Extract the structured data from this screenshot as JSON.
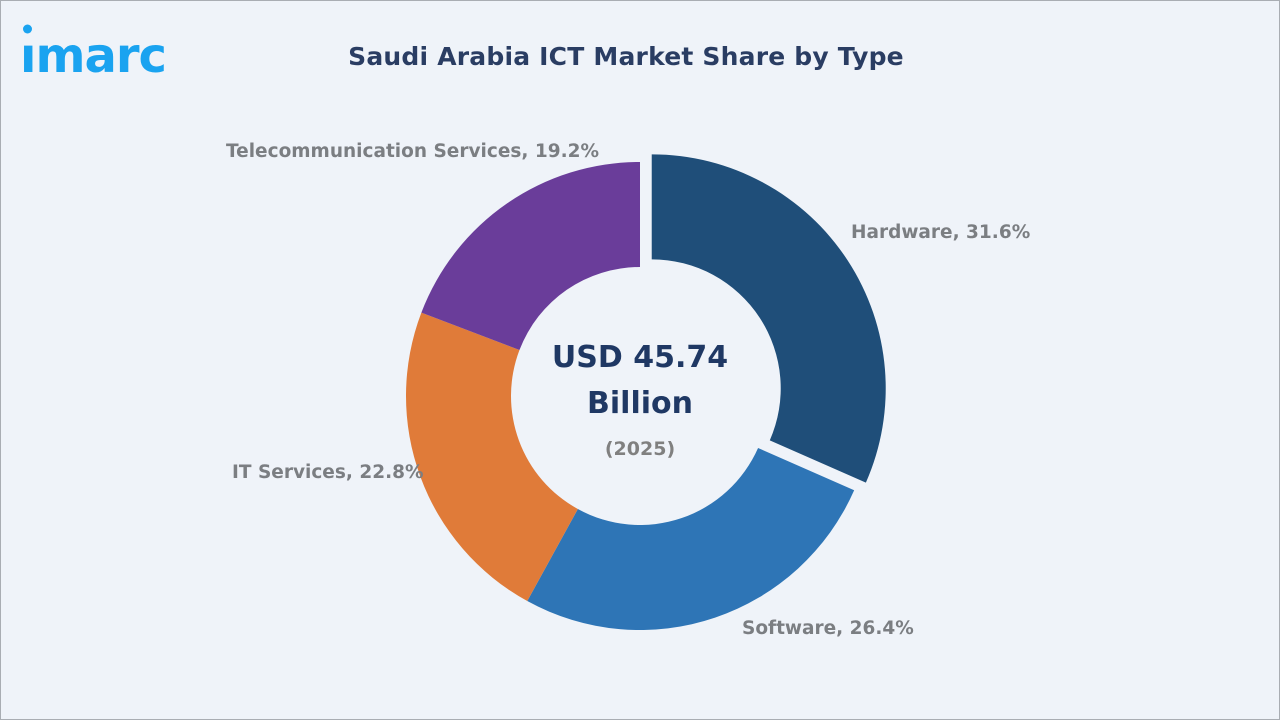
{
  "brand": {
    "logo_text": "imarc",
    "logo_color": "#1aa3f0"
  },
  "header": {
    "title": "Saudi Arabia ICT Market Share by Type"
  },
  "center": {
    "value_line1": "USD 45.74",
    "value_line2": "Billion",
    "year": "(2025)"
  },
  "labels": {
    "telecom": "Telecommunication Services, 19.2%",
    "hardware": "Hardware, 31.6%",
    "it_services": "IT Services, 22.8%",
    "software": "Software, 26.4%"
  },
  "chart_data": {
    "type": "pie",
    "subtype": "donut",
    "title": "Saudi Arabia ICT Market Share by Type",
    "center_label": "USD 45.74 Billion (2025)",
    "categories": [
      "Hardware",
      "Software",
      "IT Services",
      "Telecommunication Services"
    ],
    "values": [
      31.6,
      26.4,
      22.8,
      19.2
    ],
    "unit": "%",
    "colors": [
      "#1f4e79",
      "#2e75b6",
      "#e07b39",
      "#6a3d9a"
    ],
    "exploded": [
      "Hardware"
    ],
    "legend": "none (data labels outside slices)"
  }
}
